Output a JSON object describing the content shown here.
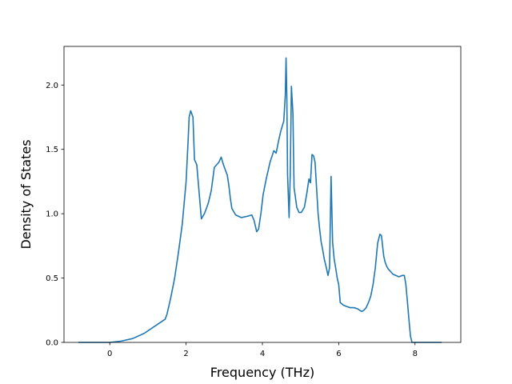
{
  "chart_data": {
    "type": "line",
    "title": "",
    "xlabel": "Frequency (THz)",
    "ylabel": "Density of States",
    "xlim": [
      -1.2,
      9.2
    ],
    "ylim": [
      0.0,
      2.3
    ],
    "xticks": [
      0,
      2,
      4,
      6,
      8
    ],
    "xtick_labels": [
      "0",
      "2",
      "4",
      "6",
      "8"
    ],
    "yticks": [
      0.0,
      0.5,
      1.0,
      1.5,
      2.0
    ],
    "ytick_labels": [
      "0.0",
      "0.5",
      "1.0",
      "1.5",
      "2.0"
    ],
    "grid": false,
    "legend": "none",
    "line_color": "#1f77b4",
    "series": [
      {
        "x": [
          -0.82,
          -0.2,
          0.0,
          0.3,
          0.6,
          0.9,
          1.2,
          1.45,
          1.5,
          1.6,
          1.7,
          1.8,
          1.9,
          2.0,
          2.05,
          2.08,
          2.12,
          2.18,
          2.22,
          2.28,
          2.36,
          2.4,
          2.48,
          2.58,
          2.66,
          2.74,
          2.8,
          2.86,
          2.92,
          2.98,
          3.04,
          3.08,
          3.12,
          3.16,
          3.2,
          3.3,
          3.45,
          3.6,
          3.72,
          3.78,
          3.85,
          3.9,
          3.96,
          4.02,
          4.1,
          4.2,
          4.3,
          4.36,
          4.42,
          4.48,
          4.52,
          4.56,
          4.6,
          4.62,
          4.64,
          4.66,
          4.7,
          4.73,
          4.76,
          4.8,
          4.83,
          4.86,
          4.9,
          4.96,
          5.02,
          5.1,
          5.16,
          5.22,
          5.26,
          5.3,
          5.34,
          5.38,
          5.42,
          5.46,
          5.5,
          5.54,
          5.58,
          5.62,
          5.66,
          5.72,
          5.76,
          5.8,
          5.84,
          5.88,
          5.92,
          5.96,
          6.0,
          6.04,
          6.08,
          6.12,
          6.2,
          6.3,
          6.4,
          6.5,
          6.6,
          6.66,
          6.72,
          6.78,
          6.84,
          6.9,
          6.96,
          7.02,
          7.08,
          7.12,
          7.18,
          7.22,
          7.26,
          7.3,
          7.36,
          7.42,
          7.5,
          7.58,
          7.66,
          7.72,
          7.76,
          7.8,
          7.84,
          7.88,
          7.92,
          7.96,
          8.2,
          8.7
        ],
        "y": [
          0.0,
          0.0,
          0.0,
          0.01,
          0.03,
          0.07,
          0.13,
          0.18,
          0.22,
          0.35,
          0.5,
          0.7,
          0.92,
          1.25,
          1.55,
          1.75,
          1.8,
          1.75,
          1.42,
          1.38,
          1.1,
          0.96,
          1.0,
          1.08,
          1.18,
          1.36,
          1.38,
          1.4,
          1.44,
          1.38,
          1.33,
          1.3,
          1.22,
          1.12,
          1.04,
          0.99,
          0.97,
          0.98,
          0.99,
          0.95,
          0.86,
          0.88,
          1.0,
          1.15,
          1.27,
          1.4,
          1.49,
          1.47,
          1.56,
          1.64,
          1.68,
          1.72,
          1.92,
          2.21,
          1.92,
          1.3,
          0.97,
          1.3,
          1.99,
          1.78,
          1.2,
          1.14,
          1.05,
          1.01,
          1.01,
          1.05,
          1.15,
          1.27,
          1.24,
          1.46,
          1.45,
          1.4,
          1.2,
          1.0,
          0.88,
          0.78,
          0.72,
          0.65,
          0.6,
          0.52,
          0.58,
          1.29,
          0.78,
          0.65,
          0.58,
          0.5,
          0.45,
          0.31,
          0.3,
          0.29,
          0.28,
          0.27,
          0.27,
          0.26,
          0.24,
          0.25,
          0.27,
          0.31,
          0.36,
          0.45,
          0.58,
          0.77,
          0.84,
          0.83,
          0.67,
          0.62,
          0.59,
          0.57,
          0.55,
          0.53,
          0.52,
          0.51,
          0.52,
          0.52,
          0.45,
          0.32,
          0.18,
          0.05,
          0.0,
          0.0,
          0.0,
          0.0
        ]
      }
    ]
  }
}
